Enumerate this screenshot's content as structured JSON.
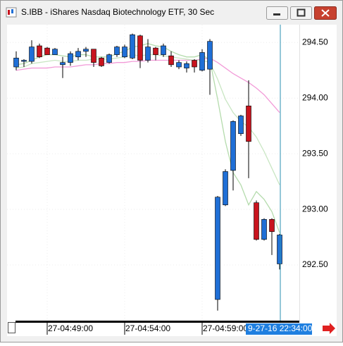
{
  "window": {
    "title": "S.IBB - iShares Nasdaq Biotechnology ETF, 30 Sec"
  },
  "chart_data": {
    "type": "candlestick",
    "categories": [
      null,
      null,
      null,
      null,
      "27-04:49:00",
      null,
      null,
      null,
      null,
      null,
      null,
      null,
      null,
      null,
      "27-04:54:00",
      null,
      null,
      null,
      null,
      null,
      null,
      null,
      null,
      null,
      "27-04:59:00",
      null,
      null,
      null,
      null,
      null,
      null,
      null,
      null,
      null,
      null
    ],
    "open": [
      294.28,
      294.33,
      294.33,
      294.47,
      294.45,
      294.39,
      294.3,
      294.32,
      294.37,
      294.42,
      294.44,
      294.36,
      294.32,
      294.39,
      294.37,
      294.36,
      294.56,
      294.34,
      294.45,
      294.39,
      294.38,
      294.28,
      294.27,
      294.34,
      294.25,
      294.26,
      292.19,
      293.04,
      293.35,
      293.68,
      293.93,
      293.06,
      292.73,
      292.91,
      292.51
    ],
    "high": [
      294.42,
      294.35,
      294.52,
      294.49,
      294.46,
      294.45,
      294.37,
      294.42,
      294.45,
      294.46,
      294.44,
      294.37,
      294.4,
      294.47,
      294.48,
      294.58,
      294.57,
      294.53,
      294.46,
      294.49,
      294.42,
      294.34,
      294.33,
      294.35,
      294.44,
      294.53,
      293.12,
      293.36,
      293.8,
      293.85,
      294.16,
      293.08,
      292.92,
      292.92,
      292.78
    ],
    "low": [
      294.25,
      294.28,
      294.31,
      294.36,
      294.39,
      294.39,
      294.18,
      294.29,
      294.34,
      294.37,
      294.28,
      294.28,
      294.31,
      294.37,
      294.36,
      294.35,
      294.27,
      294.32,
      294.34,
      294.37,
      294.28,
      294.26,
      294.23,
      294.23,
      294.24,
      294.03,
      292.09,
      293.03,
      293.17,
      293.66,
      293.28,
      292.72,
      292.72,
      292.59,
      292.46
    ],
    "close": [
      294.36,
      294.34,
      294.46,
      294.37,
      294.39,
      294.44,
      294.32,
      294.4,
      294.42,
      294.44,
      294.32,
      294.29,
      294.39,
      294.46,
      294.46,
      294.57,
      294.34,
      294.46,
      294.39,
      294.47,
      294.3,
      294.32,
      294.31,
      294.28,
      294.41,
      294.51,
      293.11,
      293.34,
      293.79,
      293.84,
      293.61,
      292.73,
      292.91,
      292.8,
      292.77
    ],
    "up_color": "#1f6fd6",
    "down_color": "#c8141e",
    "overlays": [
      {
        "color": "#f29bd8",
        "values": [
          294.25,
          294.26,
          294.27,
          294.27,
          294.27,
          294.28,
          294.28,
          294.28,
          294.29,
          294.3,
          294.3,
          294.31,
          294.31,
          294.32,
          294.32,
          294.33,
          294.33,
          294.34,
          294.34,
          294.34,
          294.34,
          294.34,
          294.34,
          294.34,
          294.35,
          294.36,
          294.32,
          294.27,
          294.22,
          294.18,
          294.14,
          294.09,
          294.03,
          293.95,
          293.87
        ]
      },
      {
        "color": "#c9e6c3",
        "values": [
          294.27,
          294.28,
          294.31,
          294.32,
          294.33,
          294.34,
          294.33,
          294.33,
          294.34,
          294.34,
          294.35,
          294.35,
          294.35,
          294.36,
          294.37,
          294.39,
          294.38,
          294.39,
          294.39,
          294.38,
          294.37,
          294.36,
          294.35,
          294.34,
          294.34,
          294.32,
          294.17,
          293.99,
          293.87,
          293.79,
          293.74,
          293.65,
          293.52,
          293.37,
          293.22
        ]
      },
      {
        "color": "#b4dbac",
        "values": [
          294.3,
          294.31,
          294.34,
          294.37,
          294.39,
          294.39,
          294.38,
          294.37,
          294.39,
          294.39,
          294.37,
          294.37,
          294.37,
          294.4,
          294.42,
          294.46,
          294.47,
          294.49,
          294.47,
          294.46,
          294.42,
          294.39,
          294.37,
          294.37,
          294.39,
          294.34,
          293.99,
          293.61,
          293.33,
          293.22,
          293.04,
          293.16,
          293.09,
          292.98,
          292.79
        ]
      }
    ],
    "ylim": [
      292.0,
      294.66
    ],
    "yticks": [
      {
        "value": 292.5,
        "label": "292.50"
      },
      {
        "value": 293,
        "label": "293.00"
      },
      {
        "value": 293.5,
        "label": "293.50"
      },
      {
        "value": 294,
        "label": "294.00"
      },
      {
        "value": 294.5,
        "label": "294.50"
      }
    ],
    "grid": true,
    "cursor_label": "9-27-16 22:34:00",
    "cursor_color": "#2a8fb0"
  }
}
